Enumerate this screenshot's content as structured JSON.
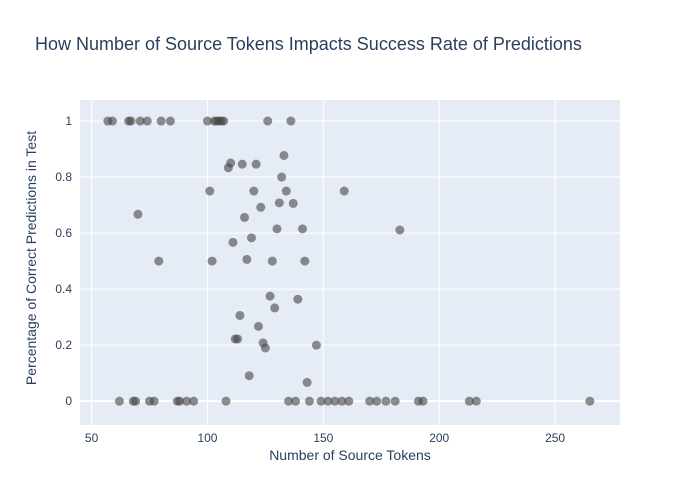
{
  "chart_data": {
    "type": "scatter",
    "title": "How Number of Source Tokens Impacts Success Rate of Predictions",
    "xlabel": "Number of Source Tokens",
    "ylabel": "Percentage of Correct Predictions in Test",
    "xlim": [
      45,
      278
    ],
    "ylim": [
      -0.085,
      1.075
    ],
    "xticks": [
      50,
      100,
      150,
      200,
      250
    ],
    "yticks": [
      0,
      0.2,
      0.4,
      0.6,
      0.8,
      1
    ],
    "grid": true,
    "legend": "none",
    "colors": {
      "marker": "#444444",
      "plot_bg": "#e5ecf6",
      "grid": "#ffffff",
      "text": "#2a3f5f"
    },
    "points": [
      [
        57,
        1
      ],
      [
        59,
        1
      ],
      [
        66,
        1
      ],
      [
        67,
        1
      ],
      [
        71,
        1
      ],
      [
        74,
        1
      ],
      [
        80,
        1
      ],
      [
        84,
        1
      ],
      [
        100,
        1
      ],
      [
        103,
        1
      ],
      [
        104,
        1
      ],
      [
        105,
        1
      ],
      [
        106,
        1
      ],
      [
        107,
        1
      ],
      [
        126,
        1
      ],
      [
        136,
        1
      ],
      [
        62,
        0
      ],
      [
        68,
        0
      ],
      [
        69,
        0
      ],
      [
        75,
        0
      ],
      [
        77,
        0
      ],
      [
        87,
        0
      ],
      [
        88,
        0
      ],
      [
        91,
        0
      ],
      [
        94,
        0
      ],
      [
        108,
        0
      ],
      [
        135,
        0
      ],
      [
        138,
        0
      ],
      [
        144,
        0
      ],
      [
        149,
        0
      ],
      [
        152,
        0
      ],
      [
        155,
        0
      ],
      [
        158,
        0
      ],
      [
        161,
        0
      ],
      [
        170,
        0
      ],
      [
        173,
        0
      ],
      [
        177,
        0
      ],
      [
        181,
        0
      ],
      [
        191,
        0
      ],
      [
        193,
        0
      ],
      [
        213,
        0
      ],
      [
        216,
        0
      ],
      [
        265,
        0
      ],
      [
        70,
        0.667
      ],
      [
        79,
        0.5
      ],
      [
        101,
        0.75
      ],
      [
        102,
        0.5
      ],
      [
        109,
        0.833
      ],
      [
        110,
        0.85
      ],
      [
        111,
        0.567
      ],
      [
        112,
        0.222
      ],
      [
        113,
        0.222
      ],
      [
        114,
        0.306
      ],
      [
        115,
        0.846
      ],
      [
        116,
        0.656
      ],
      [
        117,
        0.506
      ],
      [
        118,
        0.091
      ],
      [
        119,
        0.583
      ],
      [
        120,
        0.75
      ],
      [
        121,
        0.846
      ],
      [
        122,
        0.267
      ],
      [
        123,
        0.692
      ],
      [
        124,
        0.208
      ],
      [
        125,
        0.19
      ],
      [
        127,
        0.375
      ],
      [
        128,
        0.5
      ],
      [
        129,
        0.333
      ],
      [
        130,
        0.615
      ],
      [
        131,
        0.708
      ],
      [
        132,
        0.8
      ],
      [
        133,
        0.877
      ],
      [
        134,
        0.75
      ],
      [
        137,
        0.706
      ],
      [
        139,
        0.364
      ],
      [
        141,
        0.615
      ],
      [
        142,
        0.5
      ],
      [
        143,
        0.067
      ],
      [
        147,
        0.2
      ],
      [
        159,
        0.75
      ],
      [
        183,
        0.611
      ]
    ]
  }
}
